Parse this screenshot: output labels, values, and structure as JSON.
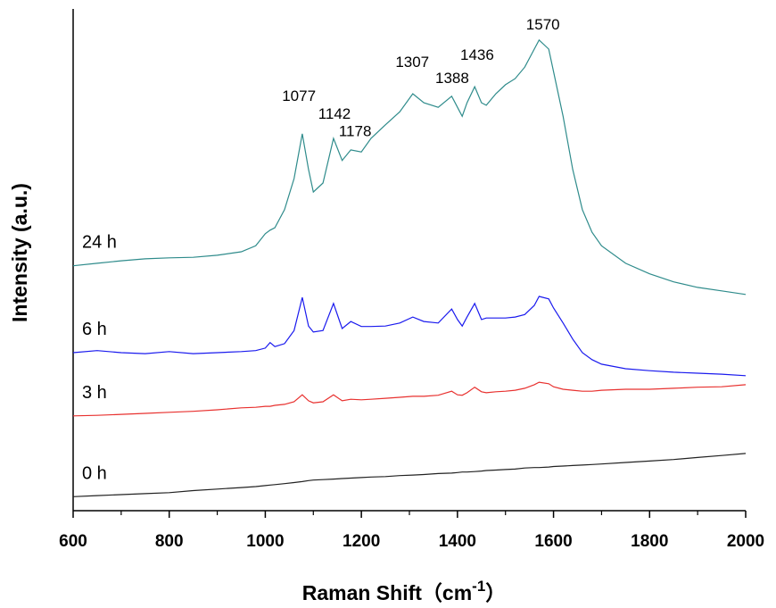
{
  "chart_data": {
    "type": "line",
    "xlabel": [
      "Raman Shift（cm",
      "-1",
      "）"
    ],
    "ylabel": "Intensity (a.u.)",
    "x": [
      600,
      650,
      700,
      750,
      800,
      850,
      900,
      950,
      980,
      1000,
      1010,
      1020,
      1040,
      1060,
      1077,
      1090,
      1100,
      1120,
      1142,
      1160,
      1178,
      1200,
      1220,
      1250,
      1280,
      1307,
      1330,
      1360,
      1388,
      1400,
      1410,
      1420,
      1436,
      1450,
      1460,
      1480,
      1500,
      1520,
      1540,
      1560,
      1570,
      1590,
      1600,
      1620,
      1640,
      1660,
      1680,
      1700,
      1750,
      1800,
      1850,
      1900,
      1950,
      2000
    ],
    "series": [
      {
        "name": "0 h",
        "color": "#222222",
        "values": [
          2.8,
          3.0,
          3.2,
          3.4,
          3.6,
          4.0,
          4.3,
          4.6,
          4.8,
          5.0,
          5.1,
          5.2,
          5.4,
          5.6,
          5.8,
          6.0,
          6.1,
          6.2,
          6.3,
          6.4,
          6.5,
          6.6,
          6.7,
          6.8,
          7.0,
          7.1,
          7.2,
          7.4,
          7.5,
          7.6,
          7.7,
          7.7,
          7.8,
          7.9,
          8.0,
          8.1,
          8.2,
          8.3,
          8.5,
          8.6,
          8.6,
          8.7,
          8.8,
          8.9,
          9.0,
          9.1,
          9.2,
          9.3,
          9.6,
          9.9,
          10.2,
          10.6,
          11.0,
          11.4
        ]
      },
      {
        "name": "3 h",
        "color": "#e8312f",
        "values": [
          18.9,
          19.0,
          19.2,
          19.4,
          19.6,
          19.8,
          20.1,
          20.5,
          20.6,
          20.8,
          20.8,
          21.0,
          21.2,
          21.7,
          23.1,
          21.9,
          21.5,
          21.7,
          23.1,
          21.9,
          22.2,
          22.1,
          22.2,
          22.4,
          22.6,
          22.8,
          22.8,
          23.0,
          23.8,
          23.1,
          23.0,
          23.5,
          24.6,
          23.7,
          23.5,
          23.7,
          23.8,
          24.0,
          24.4,
          25.1,
          25.6,
          25.3,
          24.7,
          24.2,
          24.0,
          23.8,
          23.8,
          24.0,
          24.2,
          24.2,
          24.4,
          24.6,
          24.7,
          25.1
        ]
      },
      {
        "name": "6 h",
        "color": "#1a1aee",
        "values": [
          31.5,
          31.9,
          31.5,
          31.3,
          31.7,
          31.3,
          31.5,
          31.7,
          31.9,
          32.4,
          33.5,
          32.7,
          33.3,
          35.9,
          42.5,
          36.8,
          35.6,
          35.9,
          41.3,
          36.3,
          37.7,
          36.7,
          36.7,
          36.8,
          37.4,
          38.6,
          37.7,
          37.4,
          40.2,
          38.1,
          36.8,
          38.6,
          41.3,
          38.1,
          38.4,
          38.4,
          38.4,
          38.6,
          39.1,
          40.9,
          42.7,
          42.2,
          40.4,
          37.4,
          34.2,
          31.5,
          30.1,
          29.2,
          28.3,
          27.9,
          27.6,
          27.4,
          27.2,
          26.9
        ]
      },
      {
        "name": "24 h",
        "color": "#2e8b8b",
        "values": [
          48.8,
          49.3,
          49.8,
          50.2,
          50.4,
          50.5,
          50.9,
          51.6,
          52.8,
          55.2,
          55.9,
          56.4,
          60.0,
          66.2,
          75.1,
          68.0,
          63.5,
          65.3,
          74.2,
          69.8,
          71.9,
          71.5,
          74.2,
          76.9,
          79.5,
          83.1,
          81.3,
          80.4,
          82.6,
          80.4,
          78.6,
          81.3,
          84.5,
          81.3,
          80.8,
          83.1,
          84.9,
          86.1,
          88.4,
          92.0,
          93.8,
          92.0,
          87.5,
          78.6,
          68.0,
          60.0,
          55.5,
          52.8,
          49.3,
          47.2,
          45.6,
          44.5,
          43.8,
          43.1
        ]
      }
    ],
    "annotations": [
      {
        "text": "1077",
        "x": 1070,
        "y": 81.7
      },
      {
        "text": "1142",
        "x": 1144,
        "y": 78.1
      },
      {
        "text": "1178",
        "x": 1187,
        "y": 74.6
      },
      {
        "text": "1307",
        "x": 1306,
        "y": 88.4
      },
      {
        "text": "1388",
        "x": 1389,
        "y": 85.2
      },
      {
        "text": "1436",
        "x": 1441,
        "y": 89.9
      },
      {
        "text": "1570",
        "x": 1578,
        "y": 95.9
      }
    ],
    "xlim": [
      600,
      2000
    ],
    "xticks": [
      600,
      800,
      1000,
      1200,
      1400,
      1600,
      1800,
      2000
    ],
    "ylim": [
      0,
      100
    ]
  }
}
